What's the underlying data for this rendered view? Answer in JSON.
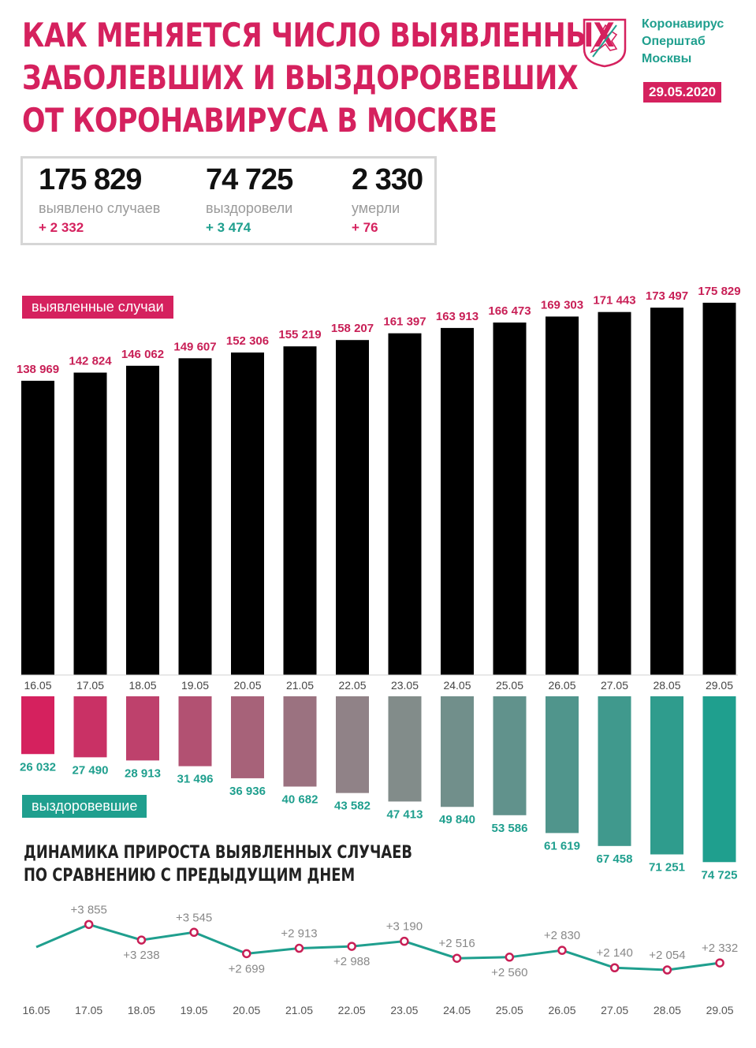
{
  "header": {
    "title_lines": [
      "КАК МЕНЯЕТСЯ ЧИСЛО ВЫЯВЛЕННЫХ",
      "ЗАБОЛЕВШИХ И ВЫЗДОРОВЕВШИХ",
      "ОТ КОРОНАВИРУСА В МОСКВЕ"
    ],
    "brand_lines": [
      "Коронавирус",
      "Оперштаб",
      "Москвы"
    ],
    "date": "29.05.2020"
  },
  "stats": [
    {
      "value": "175 829",
      "label": "выявлено случаев",
      "change": "+ 2 332",
      "color": "#d5215e"
    },
    {
      "value": "74 725",
      "label": "выздоровели",
      "change": "+ 3 474",
      "color": "#1f9f8e"
    },
    {
      "value": "2 330",
      "label": "умерли",
      "change": "+ 76",
      "color": "#d5215e"
    }
  ],
  "labels": {
    "cases": "выявленные случаи",
    "recovered": "выздоровевшие",
    "subtitle_lines": [
      "ДИНАМИКА ПРИРОСТА ВЫЯВЛЕННЫХ СЛУЧАЕВ",
      "ПО СРАВНЕНИЮ С ПРЕДЫДУЩИМ ДНЕМ"
    ]
  },
  "colors": {
    "accent": "#d5215e",
    "teal": "#1f9f8e",
    "gray": "#8a8a8a"
  },
  "chart_data": [
    {
      "type": "bar",
      "categories": [
        "16.05",
        "17.05",
        "18.05",
        "19.05",
        "20.05",
        "21.05",
        "22.05",
        "23.05",
        "24.05",
        "25.05",
        "26.05",
        "27.05",
        "28.05",
        "29.05"
      ],
      "series": [
        {
          "name": "выявленные случаи",
          "values": [
            138969,
            142824,
            146062,
            149607,
            152306,
            155219,
            158207,
            161397,
            163913,
            166473,
            169303,
            171443,
            173497,
            175829
          ],
          "labels": [
            "138 969",
            "142 824",
            "146 062",
            "149 607",
            "152 306",
            "155 219",
            "158 207",
            "161 397",
            "163 913",
            "166 473",
            "169 303",
            "171 443",
            "173 497",
            "175 829"
          ]
        },
        {
          "name": "выздоровевшие",
          "values": [
            26032,
            27490,
            28913,
            31496,
            36936,
            40682,
            43582,
            47413,
            49840,
            53586,
            61619,
            67458,
            71251,
            74725
          ],
          "labels": [
            "26 032",
            "27 490",
            "28 913",
            "31 496",
            "36 936",
            "40 682",
            "43 582",
            "47 413",
            "49 840",
            "53 586",
            "61 619",
            "67 458",
            "71 251",
            "74 725"
          ]
        }
      ]
    },
    {
      "type": "line",
      "x": [
        "16.05",
        "17.05",
        "18.05",
        "19.05",
        "20.05",
        "21.05",
        "22.05",
        "23.05",
        "24.05",
        "25.05",
        "26.05",
        "27.05",
        "28.05",
        "29.05"
      ],
      "values": [
        null,
        3855,
        3238,
        3545,
        2699,
        2913,
        2988,
        3190,
        2516,
        2560,
        2830,
        2140,
        2054,
        2332
      ],
      "labels": [
        "",
        "+3 855",
        "+3 238",
        "+3 545",
        "+2 699",
        "+2 913",
        "+2 988",
        "+3 190",
        "+2 516",
        "+2 560",
        "+2 830",
        "+2 140",
        "+2 054",
        "+2 332"
      ]
    }
  ]
}
